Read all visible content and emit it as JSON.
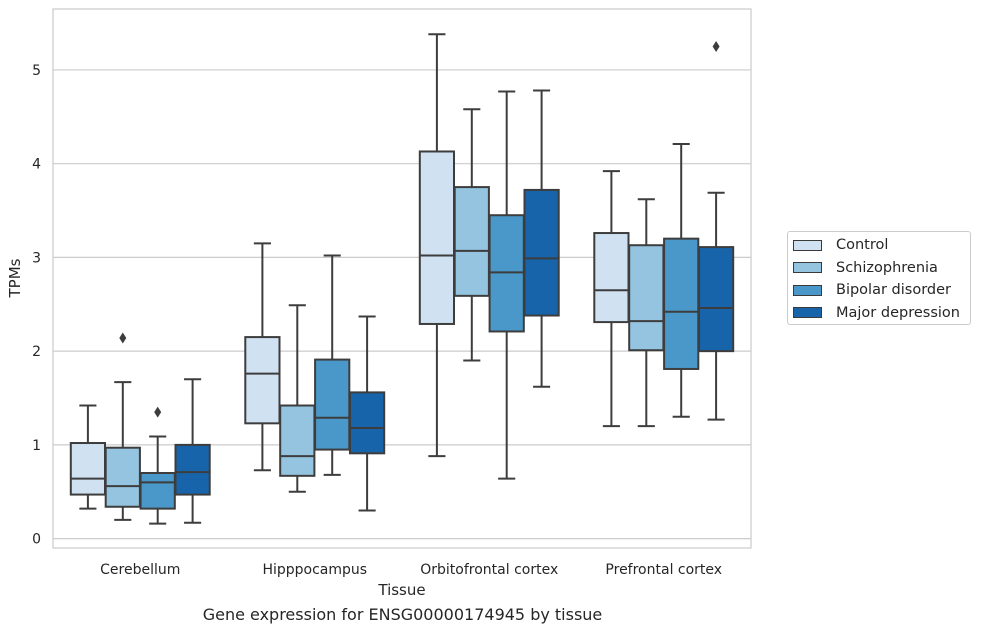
{
  "chart_data": {
    "type": "box",
    "caption": "Gene expression for ENSG00000174945 by tissue",
    "xlabel": "Tissue",
    "ylabel": "TPMs",
    "ylim": [
      -0.1,
      5.65
    ],
    "yticks": [
      0,
      1,
      2,
      3,
      4,
      5
    ],
    "grid": true,
    "legend_position": "right",
    "categories": [
      "Cerebellum",
      "Hipppocampus",
      "Orbitofrontal cortex",
      "Prefrontal cortex"
    ],
    "series": [
      {
        "name": "Control",
        "color": "#d0e1f2",
        "boxes": [
          {
            "whisker_low": 0.32,
            "q1": 0.47,
            "median": 0.64,
            "q3": 1.02,
            "whisker_high": 1.42,
            "outliers": []
          },
          {
            "whisker_low": 0.73,
            "q1": 1.23,
            "median": 1.76,
            "q3": 2.15,
            "whisker_high": 3.15,
            "outliers": []
          },
          {
            "whisker_low": 0.88,
            "q1": 2.29,
            "median": 3.02,
            "q3": 4.13,
            "whisker_high": 5.38,
            "outliers": []
          },
          {
            "whisker_low": 1.2,
            "q1": 2.31,
            "median": 2.65,
            "q3": 3.26,
            "whisker_high": 3.92,
            "outliers": []
          }
        ]
      },
      {
        "name": "Schizophrenia",
        "color": "#94c4df",
        "boxes": [
          {
            "whisker_low": 0.2,
            "q1": 0.34,
            "median": 0.56,
            "q3": 0.97,
            "whisker_high": 1.67,
            "outliers": [
              2.14
            ]
          },
          {
            "whisker_low": 0.5,
            "q1": 0.67,
            "median": 0.88,
            "q3": 1.42,
            "whisker_high": 2.49,
            "outliers": []
          },
          {
            "whisker_low": 1.9,
            "q1": 2.59,
            "median": 3.07,
            "q3": 3.75,
            "whisker_high": 4.58,
            "outliers": []
          },
          {
            "whisker_low": 1.2,
            "q1": 2.01,
            "median": 2.32,
            "q3": 3.13,
            "whisker_high": 3.62,
            "outliers": []
          }
        ]
      },
      {
        "name": "Bipolar disorder",
        "color": "#4a98c9",
        "boxes": [
          {
            "whisker_low": 0.16,
            "q1": 0.32,
            "median": 0.6,
            "q3": 0.7,
            "whisker_high": 1.09,
            "outliers": [
              1.35
            ]
          },
          {
            "whisker_low": 0.68,
            "q1": 0.95,
            "median": 1.29,
            "q3": 1.91,
            "whisker_high": 3.02,
            "outliers": []
          },
          {
            "whisker_low": 0.64,
            "q1": 2.21,
            "median": 2.84,
            "q3": 3.45,
            "whisker_high": 4.77,
            "outliers": []
          },
          {
            "whisker_low": 1.3,
            "q1": 1.81,
            "median": 2.42,
            "q3": 3.2,
            "whisker_high": 4.21,
            "outliers": []
          }
        ]
      },
      {
        "name": "Major depression",
        "color": "#1764ab",
        "boxes": [
          {
            "whisker_low": 0.17,
            "q1": 0.47,
            "median": 0.71,
            "q3": 1.0,
            "whisker_high": 1.7,
            "outliers": []
          },
          {
            "whisker_low": 0.3,
            "q1": 0.91,
            "median": 1.18,
            "q3": 1.56,
            "whisker_high": 2.37,
            "outliers": []
          },
          {
            "whisker_low": 1.62,
            "q1": 2.38,
            "median": 2.99,
            "q3": 3.72,
            "whisker_high": 4.78,
            "outliers": []
          },
          {
            "whisker_low": 1.27,
            "q1": 2.0,
            "median": 2.46,
            "q3": 3.11,
            "whisker_high": 3.69,
            "outliers": [
              5.25
            ]
          }
        ]
      }
    ]
  }
}
